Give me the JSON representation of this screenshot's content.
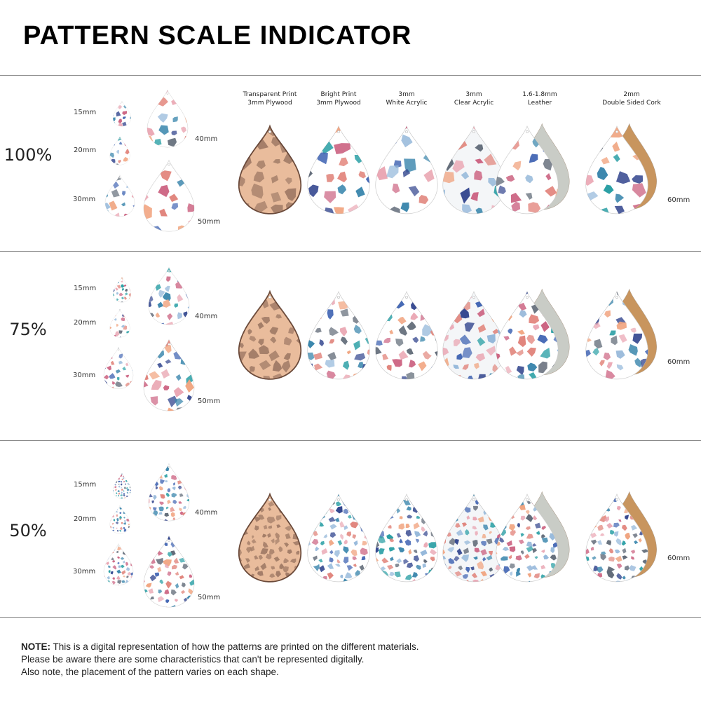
{
  "title": "PATTERN SCALE INDICATOR",
  "materials": [
    {
      "line1": "Transparent Print",
      "line2": "3mm Plywood",
      "base": "#e9bc9c",
      "backing": null
    },
    {
      "line1": "Bright Print",
      "line2": "3mm Plywood",
      "base": "#ffffff",
      "backing": null
    },
    {
      "line1": "3mm",
      "line2": "White Acrylic",
      "base": "#ffffff",
      "backing": null
    },
    {
      "line1": "3mm",
      "line2": "Clear Acrylic",
      "base": "#f4f6f8",
      "backing": null
    },
    {
      "line1": "1.6-1.8mm",
      "line2": "Leather",
      "base": "#ffffff",
      "backing": "#c9ccc6"
    },
    {
      "line1": "2mm",
      "line2": "Double Sided Cork",
      "base": "#ffffff",
      "backing": "#c8955e"
    }
  ],
  "rows": [
    {
      "scale": "100%",
      "pattern_scale": 1.0
    },
    {
      "scale": "75%",
      "pattern_scale": 0.75
    },
    {
      "scale": "50%",
      "pattern_scale": 0.5
    }
  ],
  "sizes": {
    "s15": "15mm",
    "s20": "20mm",
    "s30": "30mm",
    "s40": "40mm",
    "s50": "50mm",
    "s60": "60mm"
  },
  "palette": [
    "#2f7fa8",
    "#3a5fb0",
    "#e07f76",
    "#f0a07a",
    "#5a6472",
    "#1f9aa0",
    "#c95a7a",
    "#8fb4d8",
    "#2b3f8a",
    "#e9a3b0"
  ],
  "note": {
    "label": "NOTE:",
    "line1": "This is a digital representation of how the patterns are printed on the different materials.",
    "line2": "Please be aware there are some characteristics that can't be represented digitally.",
    "line3": "Also note, the placement of the pattern varies on each shape."
  }
}
